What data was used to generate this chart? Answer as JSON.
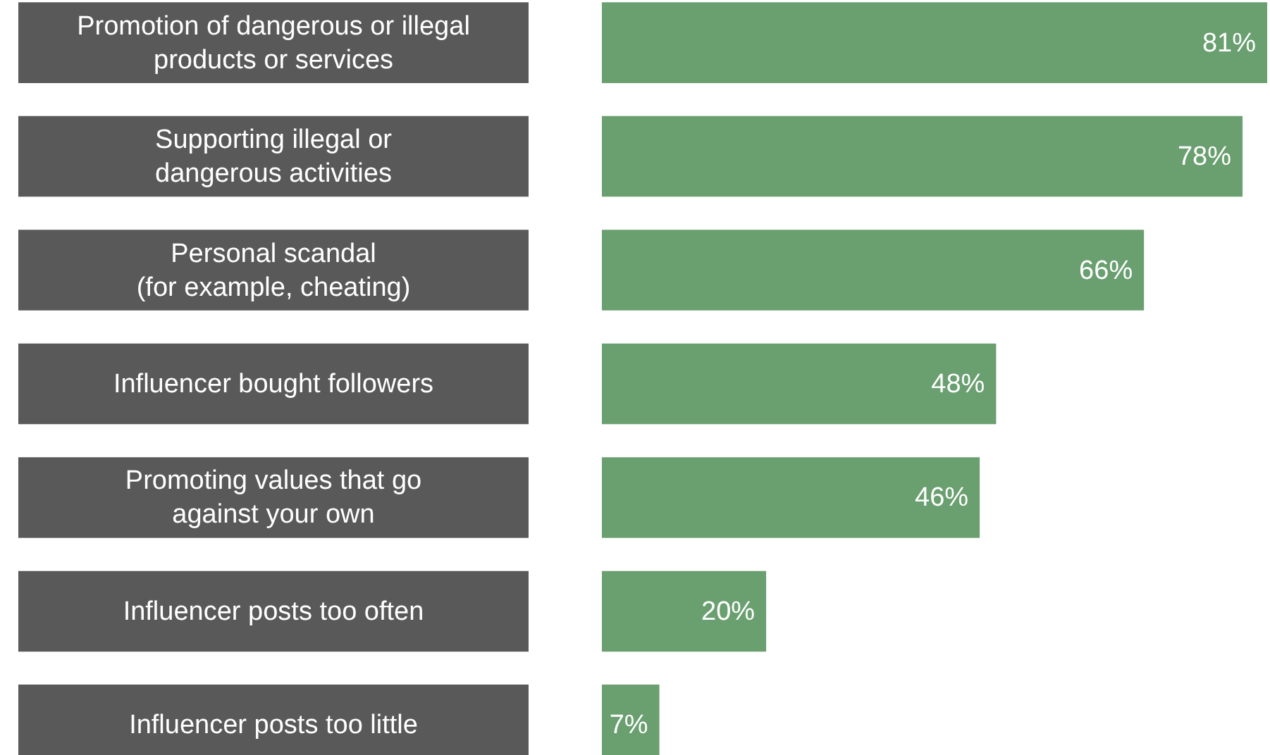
{
  "chart_data": {
    "type": "bar",
    "orientation": "horizontal",
    "categories": [
      "Promotion of  dangerous or illegal\nproducts or services",
      "Supporting illegal or\ndangerous activities",
      "Personal scandal\n(for example, cheating)",
      "Influencer bought  followers",
      "Promoting values that go\nagainst your own",
      "Influencer posts too often",
      "Influencer posts too little"
    ],
    "values": [
      81,
      78,
      66,
      48,
      46,
      20,
      7
    ],
    "value_labels": [
      "81%",
      "78%",
      "66%",
      "48%",
      "46%",
      "20%",
      "7%"
    ],
    "color": "#6a9f70"
  }
}
